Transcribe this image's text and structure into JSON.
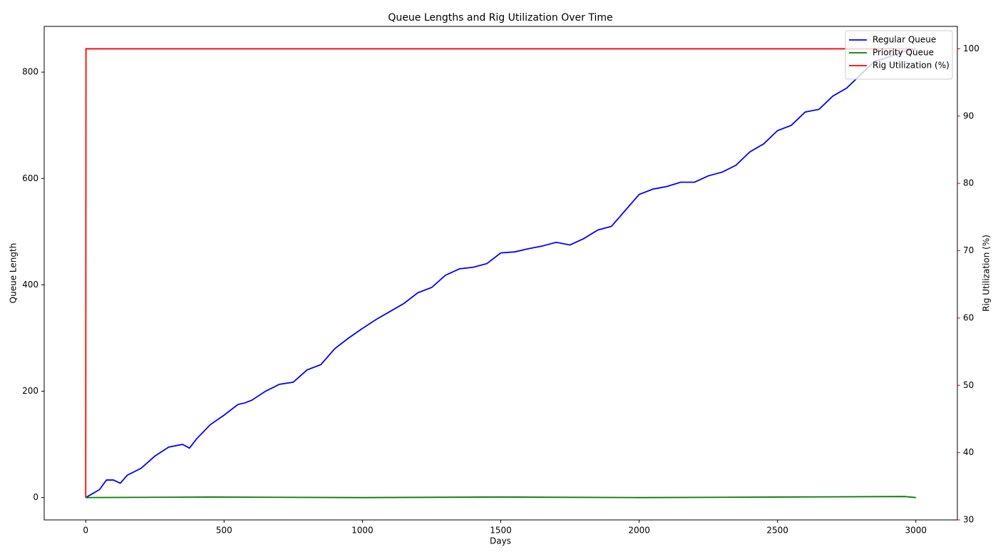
{
  "chart_data": {
    "type": "line",
    "title": "Queue Lengths and Rig Utilization Over Time",
    "x_label": "Days",
    "y_label": "Queue Length",
    "y2_label": "Rig Utilization (%)",
    "xlim": [
      -150,
      3150
    ],
    "xticks": [
      0,
      500,
      1000,
      1500,
      2000,
      2500,
      3000
    ],
    "ylim": [
      -42,
      886
    ],
    "yticks": [
      0,
      200,
      400,
      600,
      800
    ],
    "y2lim": [
      30,
      103.33
    ],
    "y2ticks": [
      30,
      40,
      50,
      60,
      70,
      80,
      90,
      100
    ],
    "y2_color": "#ff0000",
    "legend": "upper right",
    "series": [
      {
        "name": "Regular Queue",
        "color": "#0000ff",
        "x": [
          0,
          50,
          75,
          100,
          125,
          150,
          200,
          250,
          300,
          350,
          375,
          400,
          450,
          500,
          550,
          575,
          600,
          650,
          700,
          750,
          800,
          850,
          900,
          950,
          1000,
          1050,
          1100,
          1150,
          1200,
          1250,
          1300,
          1350,
          1400,
          1450,
          1500,
          1550,
          1600,
          1650,
          1700,
          1750,
          1800,
          1850,
          1900,
          1950,
          2000,
          2050,
          2100,
          2150,
          2200,
          2250,
          2300,
          2350,
          2400,
          2450,
          2500,
          2550,
          2600,
          2650,
          2700,
          2750,
          2800,
          2850,
          2900,
          2950,
          3000
        ],
        "values": [
          0,
          15,
          33,
          33,
          27,
          42,
          55,
          78,
          95,
          100,
          93,
          110,
          137,
          155,
          175,
          178,
          183,
          200,
          213,
          217,
          240,
          250,
          280,
          300,
          318,
          335,
          350,
          365,
          385,
          395,
          418,
          430,
          433,
          440,
          460,
          462,
          468,
          473,
          480,
          475,
          487,
          503,
          510,
          540,
          570,
          580,
          585,
          593,
          593,
          605,
          612,
          625,
          650,
          665,
          690,
          700,
          725,
          730,
          755,
          770,
          795,
          820,
          828,
          838,
          844
        ]
      },
      {
        "name": "Priority Queue",
        "color": "#008000",
        "x": [
          0,
          450,
          1000,
          1500,
          2000,
          2500,
          2960,
          3000
        ],
        "values": [
          0,
          1,
          0,
          1,
          0,
          1,
          2,
          0
        ]
      },
      {
        "name": "Rig Utilization (%)",
        "color": "#ff0000",
        "axis": "y2",
        "x": [
          0,
          1,
          3000
        ],
        "values": [
          33.33,
          100,
          100
        ]
      }
    ]
  }
}
